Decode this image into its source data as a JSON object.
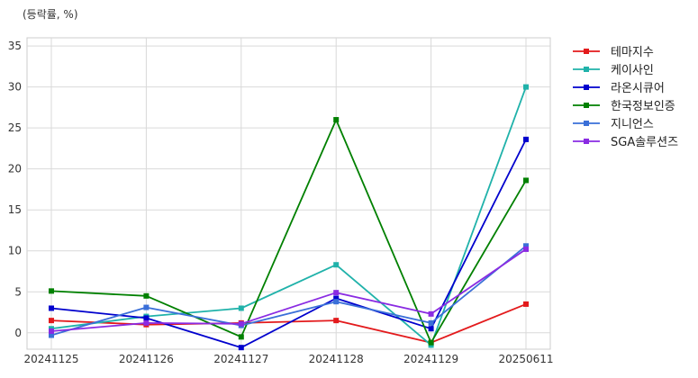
{
  "chart_data": {
    "type": "line",
    "unit_label": "(등락률, %)",
    "categories": [
      "20241125",
      "20241126",
      "20241127",
      "20241128",
      "20241129",
      "20250611"
    ],
    "ylim": [
      -2,
      36
    ],
    "yticks": [
      0,
      5,
      10,
      15,
      20,
      25,
      30,
      35
    ],
    "grid": true,
    "legend_position": "right",
    "series": [
      {
        "name": "테마지수",
        "color": "#e31a1c",
        "values": [
          1.5,
          1.0,
          1.2,
          1.5,
          -1.2,
          3.5
        ]
      },
      {
        "name": "케이사인",
        "color": "#20b2aa",
        "values": [
          0.5,
          2.0,
          3.0,
          8.3,
          -1.5,
          30.0
        ]
      },
      {
        "name": "라온시큐어",
        "color": "#0000cd",
        "values": [
          3.0,
          1.8,
          -1.8,
          4.2,
          0.5,
          23.6
        ]
      },
      {
        "name": "한국정보인증",
        "color": "#008000",
        "values": [
          5.1,
          4.5,
          -0.5,
          26.0,
          -1.2,
          18.6
        ]
      },
      {
        "name": "지니언스",
        "color": "#3a6fd8",
        "values": [
          -0.3,
          3.1,
          0.9,
          3.8,
          1.2,
          10.6
        ]
      },
      {
        "name": "SGA솔루션즈",
        "color": "#8a2be2",
        "values": [
          0.2,
          1.2,
          1.1,
          4.9,
          2.3,
          10.2
        ]
      }
    ]
  }
}
